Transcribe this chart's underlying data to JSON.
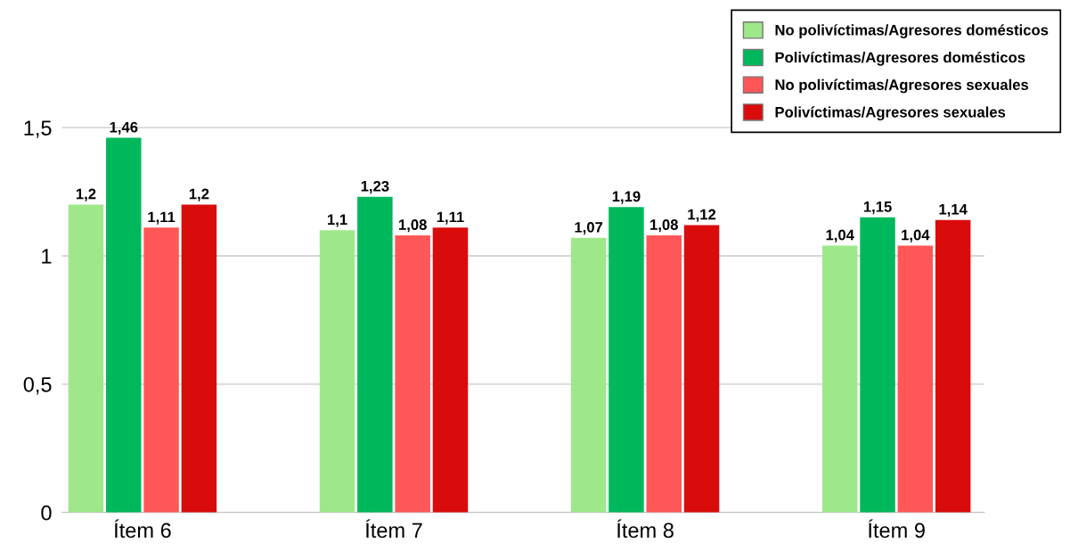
{
  "chart_data": {
    "type": "bar",
    "categories": [
      "Ítem 6",
      "Ítem 7",
      "Ítem 8",
      "Ítem 9"
    ],
    "series": [
      {
        "name": "No polivíctimas/Agresores domésticos",
        "color": "#9ee88a",
        "values": [
          1.2,
          1.1,
          1.07,
          1.04
        ],
        "value_labels": [
          "1,2",
          "1,1",
          "1,07",
          "1,04"
        ]
      },
      {
        "name": "Polivíctimas/Agresores domésticos",
        "color": "#00b85c",
        "values": [
          1.46,
          1.23,
          1.19,
          1.15
        ],
        "value_labels": [
          "1,46",
          "1,23",
          "1,19",
          "1,15"
        ]
      },
      {
        "name": "No polivíctimas/Agresores sexuales",
        "color": "#ff5757",
        "values": [
          1.11,
          1.08,
          1.08,
          1.04
        ],
        "value_labels": [
          "1,11",
          "1,08",
          "1,08",
          "1,04"
        ]
      },
      {
        "name": "Polivíctimas/Agresores sexuales",
        "color": "#d90b0b",
        "values": [
          1.2,
          1.11,
          1.12,
          1.14
        ],
        "value_labels": [
          "1,2",
          "1,11",
          "1,12",
          "1,14"
        ]
      }
    ],
    "ylim": [
      0,
      1.6
    ],
    "yticks": [
      0,
      {
        "value": 0.5,
        "label": "0,5"
      },
      1,
      {
        "value": 1.5,
        "label": "1,5"
      }
    ],
    "grid": "y",
    "legend": "top right"
  }
}
